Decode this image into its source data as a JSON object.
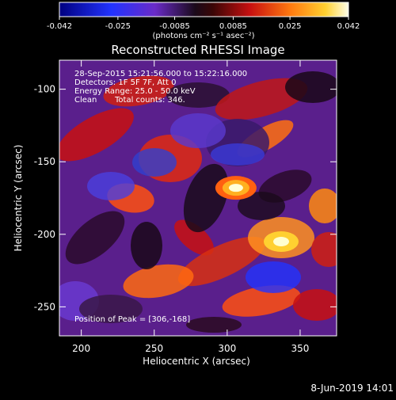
{
  "colorbar": {
    "ticks": [
      "-0.042",
      "-0.025",
      "-0.0085",
      "0.0085",
      "0.025",
      "0.042"
    ],
    "tick_values": [
      -0.042,
      -0.025,
      -0.0085,
      0.0085,
      0.025,
      0.042
    ],
    "units": "(photons cm⁻² s⁻¹ asec⁻²)"
  },
  "chart_data": {
    "type": "heatmap",
    "title": "Reconstructed RHESSI Image",
    "xlabel": "Heliocentric X (arcsec)",
    "ylabel": "Heliocentric Y (arcsec)",
    "xlim": [
      185,
      375
    ],
    "ylim": [
      -270,
      -80
    ],
    "xticks": [
      200,
      250,
      300,
      350
    ],
    "yticks": [
      -100,
      -150,
      -200,
      -250
    ],
    "annotations": [
      "28-Sep-2015 15:21:56.000 to 15:22:16.000",
      "Detectors: 1F 5F 7F, Att 0",
      "Energy Range: 25.0 - 50.0 keV",
      "Clean",
      "Total counts: 346."
    ],
    "peak_label": "Position of Peak = [306,-168]",
    "peak": [
      306,
      -168
    ]
  },
  "timestamp": "8-Jun-2019 14:01"
}
